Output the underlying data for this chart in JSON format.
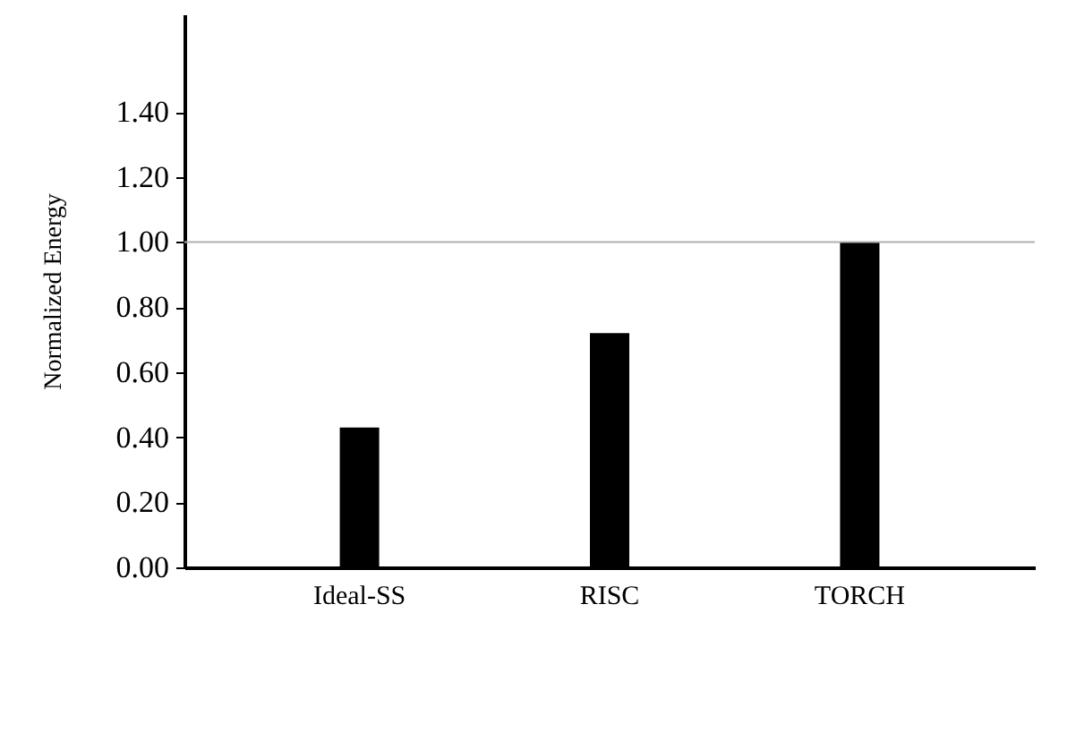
{
  "chart_data": {
    "type": "bar",
    "ylabel": "Normalized Energy",
    "categories": [
      "Ideal-SS",
      "RISC",
      "TORCH"
    ],
    "values": [
      0.43,
      0.72,
      1.0
    ],
    "color": "#000000",
    "ylim": [
      0,
      1.7
    ],
    "yticks": [
      {
        "value": 0,
        "label": "0.00"
      },
      {
        "value": 0.2,
        "label": "0.20"
      },
      {
        "value": 0.4,
        "label": "0.40"
      },
      {
        "value": 0.6,
        "label": "0.60"
      },
      {
        "value": 0.8,
        "label": "0.80"
      },
      {
        "value": 1.0,
        "label": "1.00"
      },
      {
        "value": 1.2,
        "label": "1.20"
      },
      {
        "value": 1.4,
        "label": "1.40"
      }
    ],
    "ref_lines": [
      {
        "axis": "y",
        "value": 1.0,
        "color": "#b0b0b0"
      }
    ],
    "grid": false
  }
}
